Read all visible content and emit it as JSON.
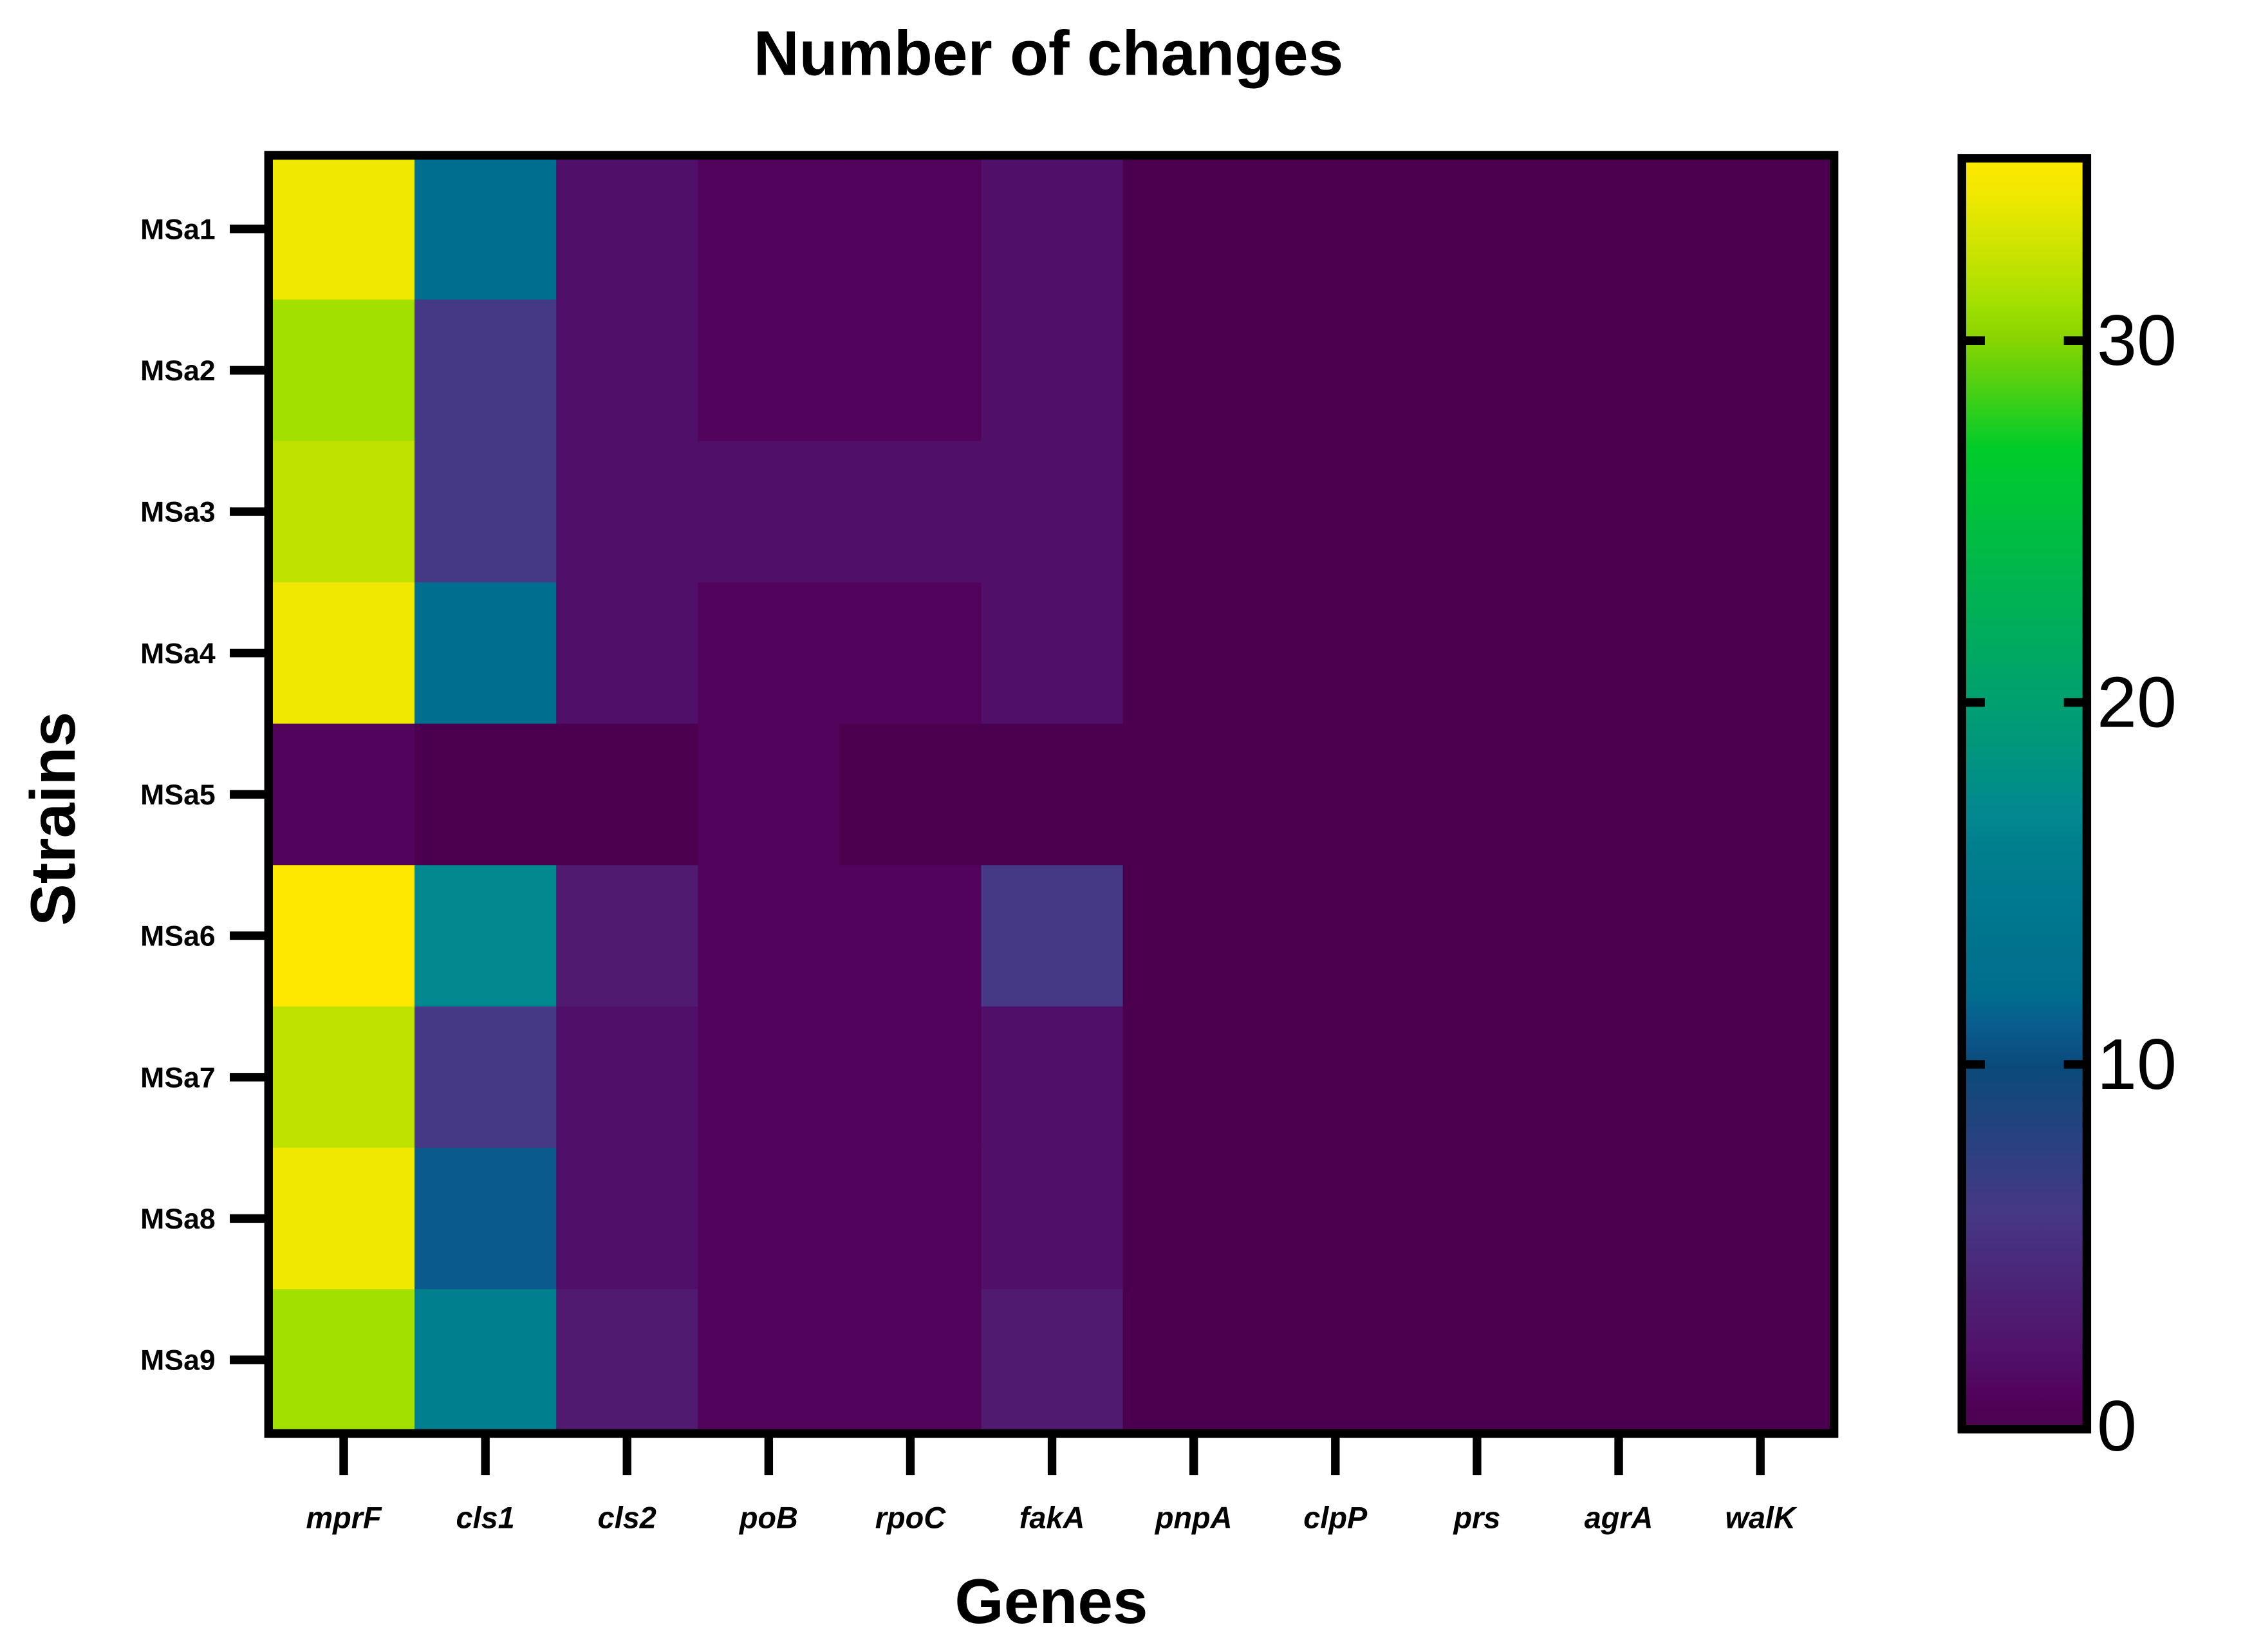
{
  "chart_data": {
    "type": "heatmap",
    "title": "Number of changes",
    "xlabel": "Genes",
    "ylabel": "Strains",
    "columns": [
      "mprF",
      "cls1",
      "cls2",
      "poB",
      "rpoC",
      "fakA",
      "pnpA",
      "clpP",
      "prs",
      "agrA",
      "walK"
    ],
    "rows": [
      "MSa1",
      "MSa2",
      "MSa3",
      "MSa4",
      "MSa5",
      "MSa6",
      "MSa7",
      "MSa8",
      "MSa9"
    ],
    "values": [
      [
        34,
        12,
        2,
        1,
        1,
        2,
        0,
        0,
        0,
        0,
        0
      ],
      [
        31,
        6,
        2,
        1,
        1,
        2,
        0,
        0,
        0,
        0,
        0
      ],
      [
        32,
        6,
        2,
        2,
        2,
        2,
        0,
        0,
        0,
        0,
        0
      ],
      [
        34,
        12,
        2,
        1,
        1,
        2,
        0,
        0,
        0,
        0,
        0
      ],
      [
        1,
        0,
        0,
        1,
        0,
        0,
        0,
        0,
        0,
        0,
        0
      ],
      [
        35,
        17,
        3,
        1,
        1,
        6,
        0,
        0,
        0,
        0,
        0
      ],
      [
        32,
        6,
        2,
        1,
        1,
        2,
        0,
        0,
        0,
        0,
        0
      ],
      [
        34,
        11,
        2,
        1,
        1,
        2,
        0,
        0,
        0,
        0,
        0
      ],
      [
        31,
        16,
        3,
        1,
        1,
        3,
        0,
        0,
        0,
        0,
        0
      ]
    ],
    "colorbar": {
      "range": [
        0,
        35
      ],
      "ticks": [
        "0",
        "10",
        "20",
        "30"
      ],
      "tick_values": [
        0,
        10,
        20,
        30
      ]
    },
    "colormap": [
      [
        0,
        "#4a004e"
      ],
      [
        1,
        "#52035c"
      ],
      [
        2,
        "#50106a"
      ],
      [
        3,
        "#4f1a70"
      ],
      [
        6,
        "#453885"
      ],
      [
        10,
        "#0a4a7a"
      ],
      [
        11,
        "#0a5a8d"
      ],
      [
        12,
        "#006e8e"
      ],
      [
        16,
        "#007f8e"
      ],
      [
        17,
        "#02888f"
      ],
      [
        20,
        "#00a070"
      ],
      [
        27,
        "#00cc2a"
      ],
      [
        30,
        "#88d400"
      ],
      [
        31,
        "#a2e000"
      ],
      [
        32,
        "#c0e200"
      ],
      [
        34,
        "#f0e800"
      ],
      [
        35,
        "#ffe800"
      ]
    ],
    "grid": false
  }
}
